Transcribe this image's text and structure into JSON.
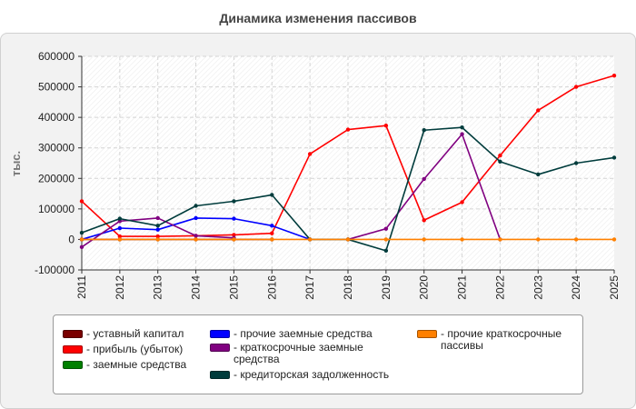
{
  "chart_data": {
    "type": "line",
    "title": "Динамика изменения пассивов",
    "ylabel": "тыс.",
    "xlabel": "",
    "x": [
      "2011",
      "2012",
      "2013",
      "2014",
      "2015",
      "2016",
      "2017",
      "2018",
      "2019",
      "2020",
      "2021",
      "2022",
      "2023",
      "2024",
      "2025"
    ],
    "ylim": [
      -100000,
      600000
    ],
    "yticks": [
      "-100000",
      "0",
      "100000",
      "200000",
      "300000",
      "400000",
      "500000",
      "600000"
    ],
    "grid": true,
    "legend_position": "bottom",
    "series": [
      {
        "name": "уставный капитал",
        "color": "#7a0000",
        "values": [
          0,
          0,
          0,
          0,
          0,
          0,
          null,
          null,
          null,
          null,
          null,
          null,
          null,
          null,
          null
        ]
      },
      {
        "name": "прибыль (убыток)",
        "color": "#ff0000",
        "values": [
          125000,
          10000,
          10000,
          12000,
          15000,
          20000,
          280000,
          360000,
          373000,
          63000,
          122000,
          275000,
          423000,
          500000,
          537000
        ]
      },
      {
        "name": "заемные средства",
        "color": "#008000",
        "values": [
          null,
          null,
          null,
          null,
          null,
          null,
          null,
          null,
          null,
          null,
          null,
          null,
          null,
          null,
          null
        ]
      },
      {
        "name": "прочие заемные средства",
        "color": "#0000ff",
        "values": [
          0,
          37000,
          32000,
          70000,
          68000,
          45000,
          0,
          null,
          null,
          null,
          null,
          null,
          null,
          null,
          null
        ]
      },
      {
        "name": "краткосрочные заемные средства",
        "color": "#800080",
        "values": [
          -25000,
          60000,
          70000,
          12000,
          5000,
          null,
          null,
          0,
          35000,
          198000,
          345000,
          0,
          null,
          null,
          null
        ]
      },
      {
        "name": "кредиторская задолженность",
        "color": "#003c3c",
        "values": [
          22000,
          68000,
          45000,
          110000,
          125000,
          146000,
          0,
          0,
          -37000,
          358000,
          367000,
          255000,
          213000,
          250000,
          268000
        ]
      },
      {
        "name": "прочие краткосрочные пассивы",
        "color": "#ff8000",
        "values": [
          0,
          0,
          0,
          0,
          0,
          0,
          0,
          0,
          0,
          0,
          0,
          0,
          0,
          0,
          0
        ]
      }
    ]
  },
  "legend": {
    "col1": [
      "- уставный капитал",
      "- прибыль (убыток)",
      "- заемные средства"
    ],
    "col2": [
      "- прочие заемные средства",
      "- краткосрочные заемные средства",
      "- кредиторская задолженность"
    ],
    "col3": [
      "- прочие краткосрочные пассивы"
    ]
  }
}
